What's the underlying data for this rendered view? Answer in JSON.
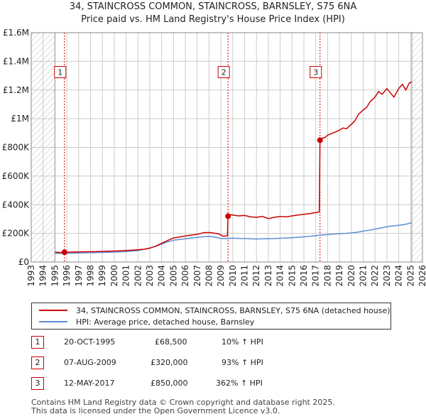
{
  "header": {
    "title_line1": "34, STAINCROSS COMMON, STAINCROSS, BARNSLEY, S75 6NA",
    "title_line2": "Price paid vs. HM Land Registry's House Price Index (HPI)"
  },
  "colors": {
    "property": "#cc0000",
    "hpi": "#5b8ed6",
    "grid": "#cccccc",
    "hatch": "#bbbbbb"
  },
  "chart_data": {
    "type": "line",
    "title": "Price paid vs. HM Land Registry's House Price Index (HPI)",
    "xlabel": "",
    "ylabel": "",
    "xlim": [
      1993,
      2026
    ],
    "ylim": [
      0,
      1600000
    ],
    "y_ticks": [
      0,
      200000,
      400000,
      600000,
      800000,
      1000000,
      1200000,
      1400000,
      1600000
    ],
    "y_tick_labels": [
      "£0",
      "£200K",
      "£400K",
      "£600K",
      "£800K",
      "£1M",
      "£1.2M",
      "£1.4M",
      "£1.6M"
    ],
    "x_ticks": [
      1993,
      1994,
      1995,
      1996,
      1997,
      1998,
      1999,
      2000,
      2001,
      2002,
      2003,
      2004,
      2005,
      2006,
      2007,
      2008,
      2009,
      2010,
      2011,
      2012,
      2013,
      2014,
      2015,
      2016,
      2017,
      2018,
      2019,
      2020,
      2021,
      2022,
      2023,
      2024,
      2025,
      2026
    ],
    "x_tick_labels": [
      "1993",
      "1994",
      "1995",
      "1996",
      "1997",
      "1998",
      "1999",
      "2000",
      "2001",
      "2002",
      "2003",
      "2004",
      "2005",
      "2006",
      "2007",
      "2008",
      "2009",
      "2010",
      "2011",
      "2012",
      "2013",
      "2014",
      "2015",
      "2016",
      "2017",
      "2018",
      "2019",
      "2020",
      "2021",
      "2022",
      "2023",
      "2024",
      "2025",
      "2026"
    ],
    "data_start": 1995.0,
    "data_end": 2025.1,
    "series": [
      {
        "name": "34, STAINCROSS COMMON, STAINCROSS, BARNSLEY, S75 6NA (detached house)",
        "x": [
          1995.0,
          1995.5,
          1995.8,
          1996.5,
          1997.5,
          1998.5,
          1999.5,
          2000.5,
          2001.5,
          2002.5,
          2003.0,
          2003.5,
          2004.0,
          2004.5,
          2005.0,
          2005.5,
          2006.0,
          2006.5,
          2007.0,
          2007.5,
          2008.0,
          2008.3,
          2008.8,
          2009.2,
          2009.55,
          2009.6,
          2009.8,
          2010.5,
          2011.0,
          2011.5,
          2012.0,
          2012.5,
          2013.0,
          2013.5,
          2014.0,
          2014.5,
          2015.0,
          2015.5,
          2016.0,
          2016.5,
          2017.0,
          2017.3,
          2017.36,
          2017.5,
          2017.8,
          2018.0,
          2018.3,
          2018.6,
          2019.0,
          2019.3,
          2019.6,
          2020.0,
          2020.3,
          2020.6,
          2021.0,
          2021.3,
          2021.6,
          2022.0,
          2022.3,
          2022.6,
          2023.0,
          2023.3,
          2023.6,
          2024.0,
          2024.3,
          2024.6,
          2024.9,
          2025.1
        ],
        "y": [
          70000,
          66000,
          68500,
          70000,
          72000,
          73000,
          76000,
          79000,
          83000,
          89000,
          97000,
          111000,
          131000,
          150000,
          168000,
          175000,
          182000,
          188000,
          193000,
          204000,
          206000,
          203000,
          197000,
          180000,
          183000,
          320000,
          330000,
          322000,
          325000,
          315000,
          312000,
          318000,
          303000,
          312000,
          318000,
          315000,
          322000,
          328000,
          333000,
          338000,
          345000,
          350000,
          850000,
          862000,
          870000,
          885000,
          895000,
          905000,
          920000,
          935000,
          930000,
          960000,
          985000,
          1030000,
          1060000,
          1080000,
          1120000,
          1150000,
          1190000,
          1170000,
          1210000,
          1180000,
          1150000,
          1210000,
          1240000,
          1200000,
          1250000,
          1255000
        ]
      },
      {
        "name": "HPI: Average price, detached house, Barnsley",
        "x": [
          1995.0,
          1996.0,
          1997.0,
          1998.0,
          1999.0,
          2000.0,
          2001.0,
          2002.0,
          2002.5,
          2003.0,
          2003.5,
          2004.0,
          2004.5,
          2005.0,
          2005.5,
          2006.0,
          2006.5,
          2007.0,
          2007.5,
          2008.0,
          2008.5,
          2009.0,
          2009.5,
          2010.0,
          2010.5,
          2011.0,
          2011.5,
          2012.0,
          2012.5,
          2013.0,
          2013.5,
          2014.0,
          2014.5,
          2015.0,
          2015.5,
          2016.0,
          2016.5,
          2017.0,
          2017.5,
          2018.0,
          2018.5,
          2019.0,
          2019.5,
          2020.0,
          2020.5,
          2021.0,
          2021.5,
          2022.0,
          2022.5,
          2023.0,
          2023.5,
          2024.0,
          2024.5,
          2025.1
        ],
        "y": [
          60000,
          62000,
          63500,
          65000,
          67000,
          69500,
          73000,
          80000,
          88000,
          97000,
          110000,
          125000,
          140000,
          152000,
          157000,
          162000,
          167000,
          172000,
          177000,
          180000,
          174000,
          165000,
          163000,
          167000,
          165000,
          164000,
          162000,
          161000,
          162000,
          163000,
          164000,
          166000,
          168000,
          170000,
          173000,
          176000,
          180000,
          184000,
          188000,
          192000,
          195000,
          198000,
          200000,
          203000,
          208000,
          216000,
          222000,
          230000,
          238000,
          246000,
          252000,
          256000,
          262000,
          275000
        ]
      }
    ],
    "sales": [
      {
        "label": "1",
        "x": 1995.8,
        "y": 68500
      },
      {
        "label": "2",
        "x": 2009.6,
        "y": 320000
      },
      {
        "label": "3",
        "x": 2017.36,
        "y": 850000
      }
    ],
    "marker_box_value": 1330000
  },
  "legend": {
    "property": "34, STAINCROSS COMMON, STAINCROSS, BARNSLEY, S75 6NA (detached house)",
    "hpi": "HPI: Average price, detached house, Barnsley"
  },
  "transactions": [
    {
      "num": "1",
      "date": "20-OCT-1995",
      "price": "£68,500",
      "hpi": "10% ↑ HPI"
    },
    {
      "num": "2",
      "date": "07-AUG-2009",
      "price": "£320,000",
      "hpi": "93% ↑ HPI"
    },
    {
      "num": "3",
      "date": "12-MAY-2017",
      "price": "£850,000",
      "hpi": "362% ↑ HPI"
    }
  ],
  "footer": {
    "line1": "Contains HM Land Registry data © Crown copyright and database right 2025.",
    "line2": "This data is licensed under the Open Government Licence v3.0."
  }
}
